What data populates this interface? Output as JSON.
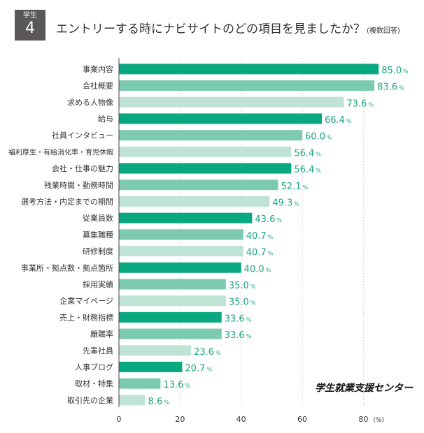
{
  "badge": {
    "category": "学生",
    "number": "4"
  },
  "title": "エントリーする時にナビサイトのどの項目を見ましたか？",
  "subtitle": "(複数回答)",
  "watermark": "学生就業支援センター",
  "colors": {
    "dark": "#0aa880",
    "medium": "#7ccbb0",
    "light": "#bfe4d6",
    "label": "#1aa57f",
    "axis": "#444444",
    "grid": "#bbbbbb"
  },
  "chart_data": {
    "type": "bar",
    "orientation": "horizontal",
    "title": "エントリーする時にナビサイトのどの項目を見ましたか？ (複数回答)",
    "xlabel": "(%)",
    "ylabel": "",
    "xlim": [
      0,
      90
    ],
    "xticks": [
      0,
      20,
      40,
      60,
      80
    ],
    "unit_suffix": "%",
    "categories": [
      "事業内容",
      "会社概要",
      "求める人物像",
      "給与",
      "社員インタビュー",
      "福利厚生・有給消化率・育児休暇",
      "会社・仕事の魅力",
      "残業時間・勤務時間",
      "選考方法・内定までの期間",
      "従業員数",
      "募集職種",
      "研修制度",
      "事業所・拠点数・拠点箇所",
      "採用実績",
      "企業マイページ",
      "売上・財務指標",
      "離職率",
      "先輩社員",
      "人事ブログ",
      "取材・特集",
      "取引先の企業"
    ],
    "values": [
      85.0,
      83.6,
      73.6,
      66.4,
      60.0,
      56.4,
      56.4,
      52.1,
      49.3,
      43.6,
      40.7,
      40.7,
      40.0,
      35.0,
      35.0,
      33.6,
      33.6,
      23.6,
      20.7,
      13.6,
      8.6
    ],
    "value_labels": [
      "85.0",
      "83.6",
      "73.6",
      "66.4",
      "60.0",
      "56.4",
      "56.4",
      "52.1",
      "49.3",
      "43.6",
      "40.7",
      "40.7",
      "40.0",
      "35.0",
      "35.0",
      "33.6",
      "33.6",
      "23.6",
      "20.7",
      "13.6",
      "8.6"
    ],
    "bar_shades": [
      "dark",
      "medium",
      "light",
      "dark",
      "medium",
      "light",
      "dark",
      "medium",
      "light",
      "dark",
      "medium",
      "light",
      "dark",
      "medium",
      "light",
      "dark",
      "medium",
      "light",
      "dark",
      "medium",
      "light"
    ]
  }
}
